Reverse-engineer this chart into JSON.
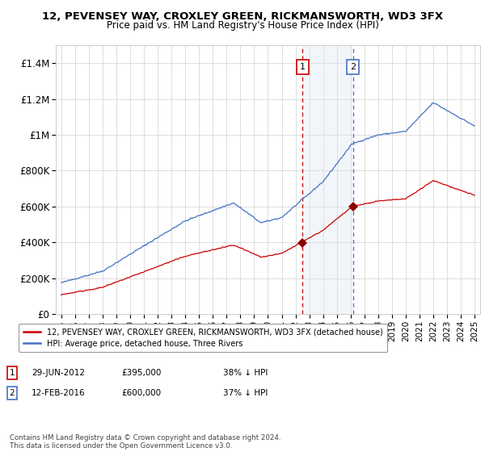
{
  "title": "12, PEVENSEY WAY, CROXLEY GREEN, RICKMANSWORTH, WD3 3FX",
  "subtitle": "Price paid vs. HM Land Registry's House Price Index (HPI)",
  "hpi_color": "#4472c4",
  "price_color": "#cc0000",
  "marker_color": "#8b0000",
  "shade_color": "#dce6f1",
  "vline_color_1": "#cc0000",
  "vline_color_2": "#4472c4",
  "sale1_date": "29-JUN-2012",
  "sale1_price": "£395,000",
  "sale1_note": "38% ↓ HPI",
  "sale2_date": "12-FEB-2016",
  "sale2_price": "£600,000",
  "sale2_note": "37% ↓ HPI",
  "legend_line1": "12, PEVENSEY WAY, CROXLEY GREEN, RICKMANSWORTH, WD3 3FX (detached house)",
  "legend_line2": "HPI: Average price, detached house, Three Rivers",
  "footer": "Contains HM Land Registry data © Crown copyright and database right 2024.\nThis data is licensed under the Open Government Licence v3.0.",
  "ylim": [
    0,
    1500000
  ],
  "yticks": [
    0,
    200000,
    400000,
    600000,
    800000,
    1000000,
    1200000,
    1400000
  ],
  "ytick_labels": [
    "£0",
    "£200K",
    "£400K",
    "£600K",
    "£800K",
    "£1M",
    "£1.2M",
    "£1.4M"
  ]
}
